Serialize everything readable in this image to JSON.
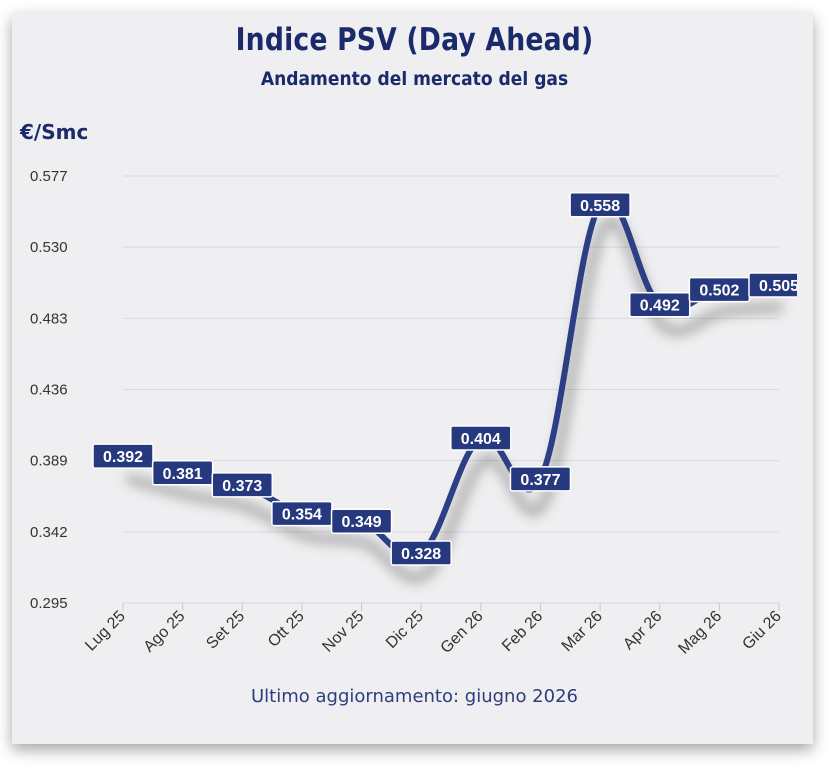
{
  "header": {
    "title": "Indice PSV (Day Ahead)",
    "subtitle": "Andamento del mercato del gas"
  },
  "footer": {
    "text": "Ultimo aggiornamento: giugno 2026"
  },
  "colors": {
    "line": "#2c3e84",
    "label_bg": "#26387e",
    "title": "#1b2a6b",
    "card_bg": "#efeff1",
    "grid": "#d9d9de"
  },
  "chart_data": {
    "type": "line",
    "title": "Indice PSV (Day Ahead)",
    "subtitle": "Andamento del mercato del gas",
    "ylabel": "€/Smc",
    "xlabel": "",
    "categories": [
      "Lug 25",
      "Ago 25",
      "Set 25",
      "Ott 25",
      "Nov 25",
      "Dic 25",
      "Gen 26",
      "Feb 26",
      "Mar 26",
      "Apr 26",
      "Mag 26",
      "Giu 26"
    ],
    "series": [
      {
        "values": [
          0.392,
          0.381,
          0.373,
          0.354,
          0.349,
          0.328,
          0.404,
          0.377,
          0.558,
          0.492,
          0.502,
          0.505
        ],
        "data_labels": [
          "0.392",
          "0.381",
          "0.373",
          "0.354",
          "0.349",
          "0.328",
          "0.404",
          "0.377",
          "0.558",
          "0.492",
          "0.502",
          "0.505"
        ]
      }
    ],
    "ylim": [
      0.295,
      0.577
    ],
    "yticks": [
      0.295,
      0.342,
      0.389,
      0.436,
      0.483,
      0.53,
      0.577
    ],
    "ytick_labels": [
      "0.295",
      "0.342",
      "0.389",
      "0.436",
      "0.483",
      "0.530",
      "0.577"
    ],
    "grid": true,
    "legend": "none"
  }
}
